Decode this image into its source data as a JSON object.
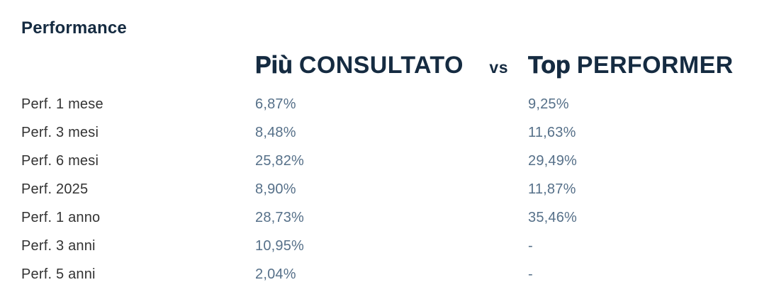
{
  "panel": {
    "title": "Performance",
    "header": {
      "col1_emphasis": "Più",
      "col1_caps": "CONSULTATO",
      "separator": "vs",
      "col2_emphasis": "Top",
      "col2_caps": "PERFORMER"
    }
  },
  "table": {
    "columns": [
      "",
      "Più CONSULTATO",
      "Top PERFORMER"
    ],
    "rows": [
      {
        "label": "Perf. 1 mese",
        "consultato": "6,87%",
        "top_performer": "9,25%"
      },
      {
        "label": "Perf. 3 mesi",
        "consultato": "8,48%",
        "top_performer": "11,63%"
      },
      {
        "label": "Perf. 6 mesi",
        "consultato": "25,82%",
        "top_performer": "29,49%"
      },
      {
        "label": "Perf. 2025",
        "consultato": "8,90%",
        "top_performer": "11,87%"
      },
      {
        "label": "Perf. 1 anno",
        "consultato": "28,73%",
        "top_performer": "35,46%"
      },
      {
        "label": "Perf. 3 anni",
        "consultato": "10,95%",
        "top_performer": "-"
      },
      {
        "label": "Perf. 5 anni",
        "consultato": "2,04%",
        "top_performer": "-"
      }
    ]
  },
  "colors": {
    "heading_navy": "#152b41",
    "label_gray": "#333333",
    "value_slate": "#567089",
    "background": "#ffffff"
  },
  "chart_data": {
    "type": "table",
    "title": "Performance",
    "categories": [
      "Perf. 1 mese",
      "Perf. 3 mesi",
      "Perf. 6 mesi",
      "Perf. 2025",
      "Perf. 1 anno",
      "Perf. 3 anni",
      "Perf. 5 anni"
    ],
    "series": [
      {
        "name": "Più CONSULTATO",
        "values": [
          6.87,
          8.48,
          25.82,
          8.9,
          28.73,
          10.95,
          2.04
        ]
      },
      {
        "name": "Top PERFORMER",
        "values": [
          9.25,
          11.63,
          29.49,
          11.87,
          35.46,
          null,
          null
        ]
      }
    ],
    "unit": "%",
    "value_format": "comma decimal separator, trailing %",
    "missing_value_display": "-",
    "layout": "two-column comparison table, header 'Più CONSULTATO vs Top PERFORMER', no gridlines, white background"
  }
}
